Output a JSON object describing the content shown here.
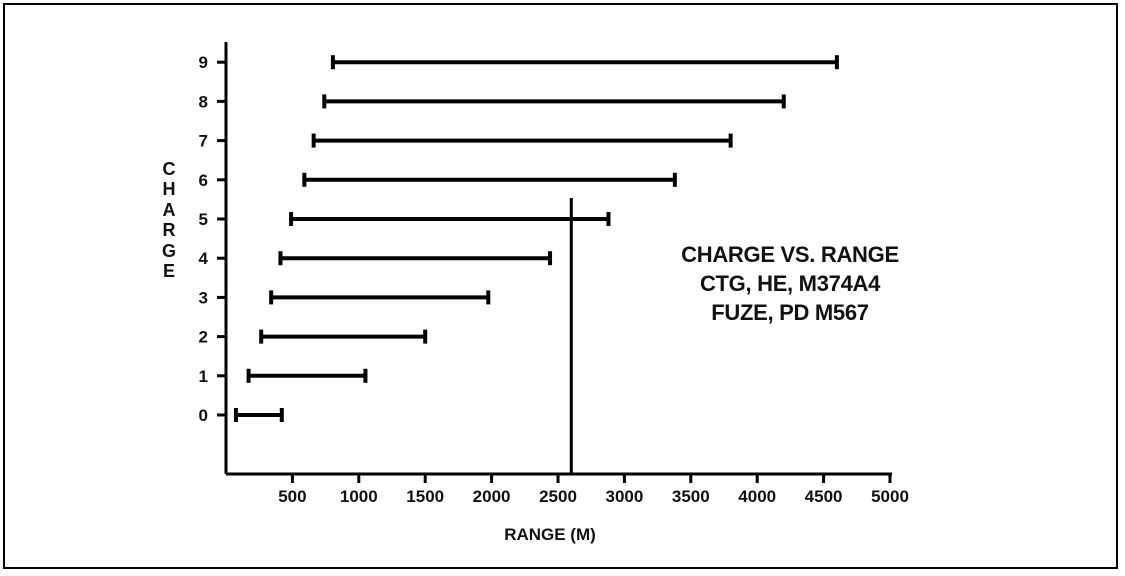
{
  "chart_data": {
    "type": "range-bar",
    "title": "",
    "xlabel": "RANGE (M)",
    "ylabel": "CHARGE",
    "xlim": [
      0,
      5000
    ],
    "x_ticks": [
      500,
      1000,
      1500,
      2000,
      2500,
      3000,
      3500,
      4000,
      4500,
      5000
    ],
    "categories": [
      "0",
      "1",
      "2",
      "3",
      "4",
      "5",
      "6",
      "7",
      "8",
      "9"
    ],
    "ranges": [
      {
        "charge": "0",
        "min": 75,
        "max": 420
      },
      {
        "charge": "1",
        "min": 170,
        "max": 1050
      },
      {
        "charge": "2",
        "min": 265,
        "max": 1500
      },
      {
        "charge": "3",
        "min": 340,
        "max": 1975
      },
      {
        "charge": "4",
        "min": 410,
        "max": 2440
      },
      {
        "charge": "5",
        "min": 490,
        "max": 2880
      },
      {
        "charge": "6",
        "min": 590,
        "max": 3380
      },
      {
        "charge": "7",
        "min": 660,
        "max": 3800
      },
      {
        "charge": "8",
        "min": 740,
        "max": 4200
      },
      {
        "charge": "9",
        "min": 805,
        "max": 4600
      }
    ],
    "reference_line_x": 2600,
    "annotation": [
      "CHARGE VS. RANGE",
      "CTG, HE, M374A4",
      "FUZE, PD M567"
    ]
  }
}
